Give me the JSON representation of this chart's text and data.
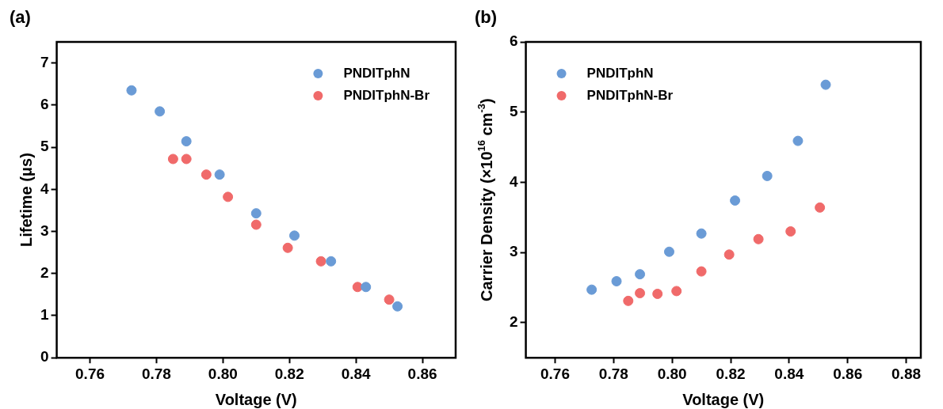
{
  "chart_data": [
    {
      "type": "scatter",
      "title": "(a)",
      "xlabel": "Voltage (V)",
      "ylabel": "Lifetime (μs)",
      "xlim": [
        0.75,
        0.87
      ],
      "ylim": [
        0,
        7.5
      ],
      "xticks": [
        {
          "value": 0.76,
          "label": "0.76"
        },
        {
          "value": 0.78,
          "label": "0.78"
        },
        {
          "value": 0.8,
          "label": "0.80"
        },
        {
          "value": 0.82,
          "label": "0.82"
        },
        {
          "value": 0.84,
          "label": "0.84"
        },
        {
          "value": 0.86,
          "label": "0.86"
        }
      ],
      "yticks": [
        0,
        1,
        2,
        3,
        4,
        5,
        6,
        7
      ],
      "legend": "top right",
      "marker": "circle",
      "grid": false,
      "series": [
        {
          "name": "PNDITphN",
          "color": "#6a9bd6",
          "x": [
            0.7725,
            0.781,
            0.789,
            0.799,
            0.81,
            0.8215,
            0.8325,
            0.843,
            0.8525
          ],
          "values": [
            6.35,
            5.85,
            5.14,
            4.35,
            3.43,
            2.9,
            2.29,
            1.68,
            1.22
          ]
        },
        {
          "name": "PNDITphN-Br",
          "color": "#f06a6a",
          "x": [
            0.785,
            0.789,
            0.795,
            0.8015,
            0.81,
            0.8195,
            0.8295,
            0.8405,
            0.85
          ],
          "values": [
            4.72,
            4.72,
            4.35,
            3.82,
            3.16,
            2.61,
            2.29,
            1.68,
            1.38
          ]
        }
      ]
    },
    {
      "type": "scatter",
      "title": "(b)",
      "xlabel": "Voltage (V)",
      "ylabel": "Carrier Density (×10$^{16}$ cm$^{-3}$)",
      "xlim": [
        0.75,
        0.885
      ],
      "ylim": [
        1.5,
        6
      ],
      "xticks": [
        {
          "value": 0.76,
          "label": "0.76"
        },
        {
          "value": 0.78,
          "label": "0.78"
        },
        {
          "value": 0.8,
          "label": "0.80"
        },
        {
          "value": 0.82,
          "label": "0.82"
        },
        {
          "value": 0.84,
          "label": "0.84"
        },
        {
          "value": 0.86,
          "label": "0.86"
        },
        {
          "value": 0.88,
          "label": "0.88"
        }
      ],
      "yticks": [
        2,
        3,
        4,
        5,
        6
      ],
      "legend": "top left",
      "marker": "circle",
      "grid": false,
      "series": [
        {
          "name": "PNDITphN",
          "color": "#6a9bd6",
          "x": [
            0.7725,
            0.781,
            0.789,
            0.799,
            0.81,
            0.8215,
            0.8325,
            0.843,
            0.8525
          ],
          "values": [
            2.47,
            2.59,
            2.69,
            3.01,
            3.27,
            3.74,
            4.09,
            4.59,
            5.39
          ]
        },
        {
          "name": "PNDITphN-Br",
          "color": "#f06a6a",
          "x": [
            0.785,
            0.789,
            0.795,
            0.8015,
            0.81,
            0.8195,
            0.8295,
            0.8405,
            0.8505
          ],
          "values": [
            2.31,
            2.42,
            2.41,
            2.45,
            2.73,
            2.97,
            3.19,
            3.3,
            3.64
          ]
        }
      ]
    }
  ]
}
